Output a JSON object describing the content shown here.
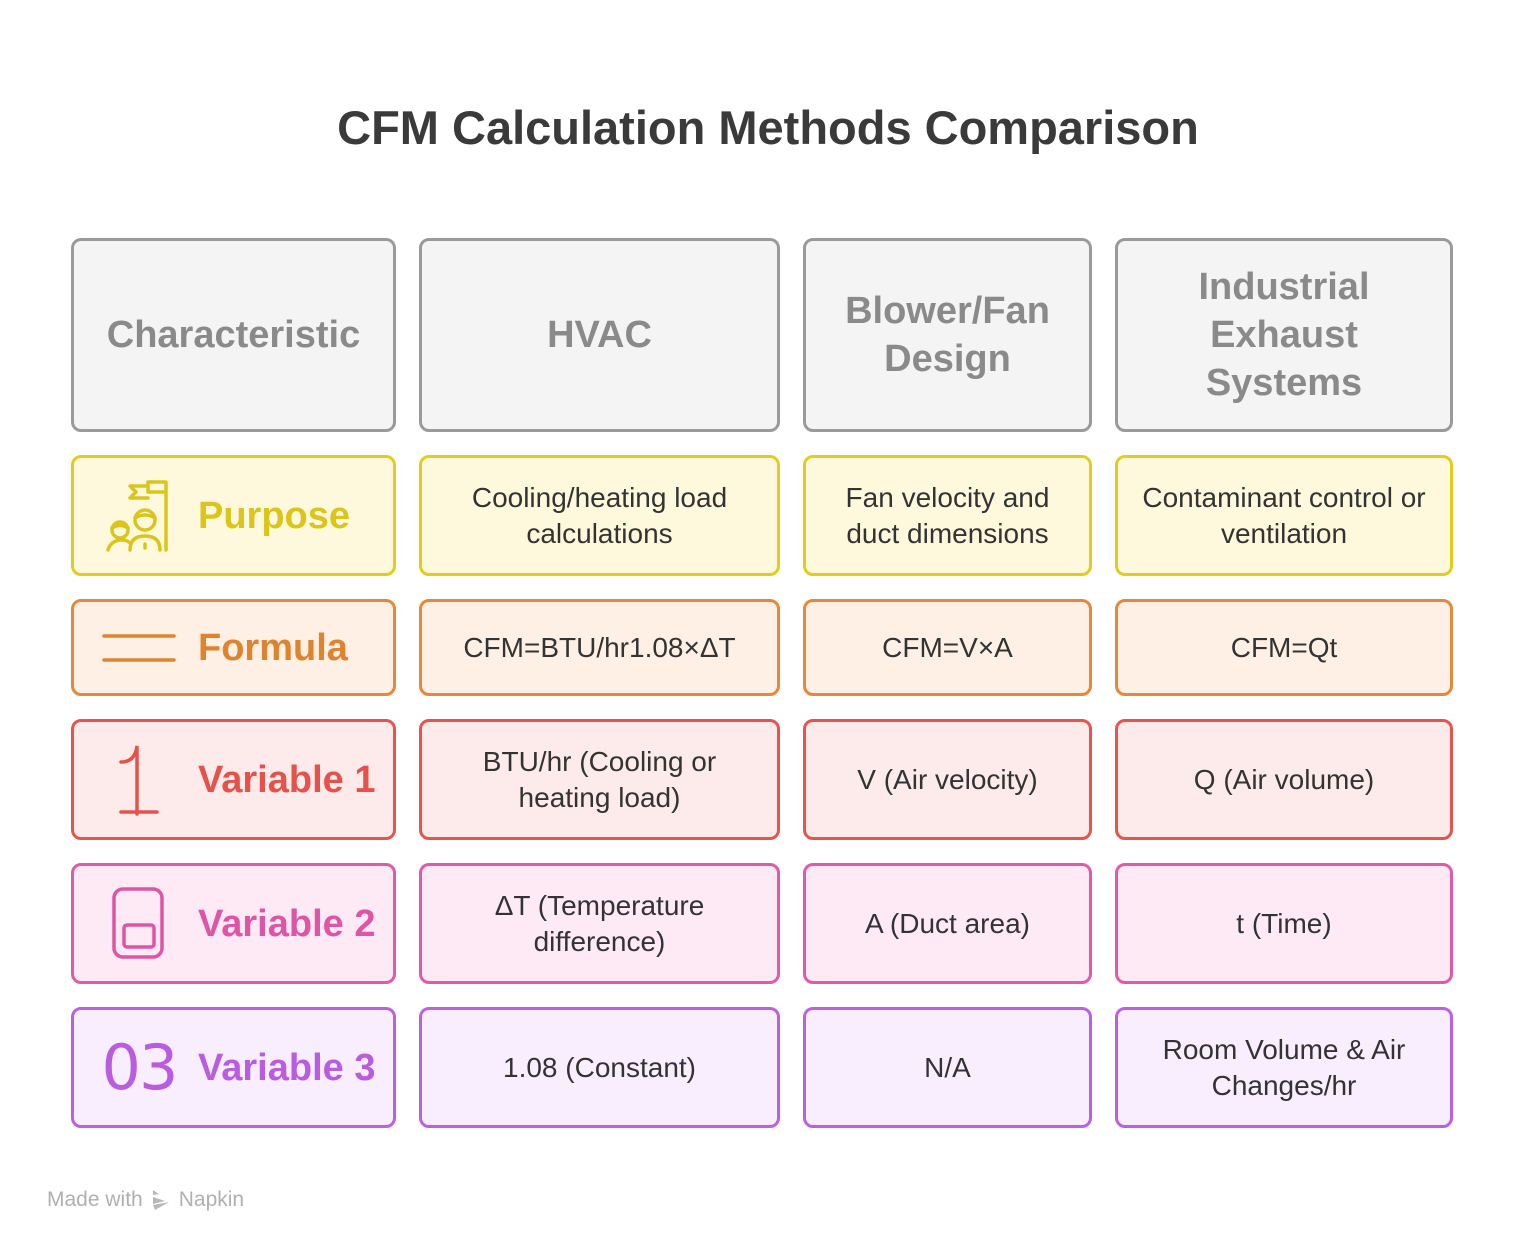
{
  "title": "CFM Calculation Methods Comparison",
  "colors": {
    "header": "#9a9a9a",
    "purpose": "#e2cd1e",
    "formula": "#e4883a",
    "variable1": "#e5554d",
    "variable2": "#e05aa8",
    "variable3": "#bb60e2"
  },
  "headers": [
    "Characteristic",
    "HVAC",
    "Blower/Fan Design",
    "Industrial Exhaust Systems"
  ],
  "rows": [
    {
      "label": "Purpose",
      "icon": "team-flag-icon",
      "cells": [
        "Cooling/heating load calculations",
        "Fan velocity and duct dimensions",
        "Contaminant control or ventilation"
      ]
    },
    {
      "label": "Formula",
      "icon": "lines-icon",
      "cells": [
        "CFM=BTU/hr1.08×ΔT",
        "CFM=V×A",
        "CFM=Qt"
      ]
    },
    {
      "label": "Variable 1",
      "icon": "number-one-icon",
      "cells": [
        "BTU/hr (Cooling or heating load)",
        "V (Air velocity)",
        "Q (Air volume)"
      ]
    },
    {
      "label": "Variable 2",
      "icon": "device-icon",
      "cells": [
        "ΔT (Temperature difference)",
        "A (Duct area)",
        "t (Time)"
      ]
    },
    {
      "label": "Variable 3",
      "icon": "number-03-icon",
      "icon_text": "03",
      "cells": [
        "1.08 (Constant)",
        "N/A",
        "Room Volume & Air Changes/hr"
      ]
    }
  ],
  "footer": {
    "made_with": "Made with",
    "brand": "Napkin"
  }
}
